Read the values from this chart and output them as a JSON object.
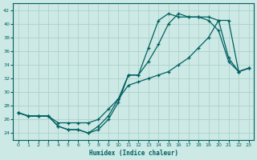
{
  "xlabel": "Humidex (Indice chaleur)",
  "xlim": [
    -0.5,
    23.5
  ],
  "ylim": [
    23,
    43
  ],
  "yticks": [
    24,
    26,
    28,
    30,
    32,
    34,
    36,
    38,
    40,
    42
  ],
  "xticks": [
    0,
    1,
    2,
    3,
    4,
    5,
    6,
    7,
    8,
    9,
    10,
    11,
    12,
    13,
    14,
    15,
    16,
    17,
    18,
    19,
    20,
    21,
    22,
    23
  ],
  "bg_color": "#cce9e5",
  "line_color": "#006060",
  "grid_color": "#a8ccc8",
  "line1_x": [
    0,
    1,
    2,
    3,
    4,
    5,
    6,
    7,
    8,
    9,
    10,
    11,
    12,
    13,
    14,
    15,
    16,
    17,
    18,
    19,
    20,
    21,
    22,
    23
  ],
  "line1_y": [
    27,
    26.5,
    26.5,
    26.5,
    25,
    24.5,
    24.5,
    24,
    24.5,
    26,
    28.5,
    32.5,
    32.5,
    36.5,
    40.5,
    41.5,
    41,
    41,
    41,
    40.5,
    39,
    34.5,
    33,
    33.5
  ],
  "line2_x": [
    0,
    1,
    2,
    3,
    4,
    5,
    6,
    7,
    8,
    9,
    10,
    11,
    12,
    13,
    14,
    15,
    16,
    17,
    18,
    19,
    20,
    21,
    22,
    23
  ],
  "line2_y": [
    27,
    26.5,
    26.5,
    26.5,
    25,
    24.5,
    24.5,
    24,
    25,
    26.5,
    29,
    32.5,
    32.5,
    34.5,
    37,
    40,
    41.5,
    41,
    41,
    41,
    40.5,
    35,
    33,
    33.5
  ],
  "line3_x": [
    0,
    1,
    2,
    3,
    4,
    5,
    6,
    7,
    8,
    9,
    10,
    11,
    12,
    13,
    14,
    15,
    16,
    17,
    18,
    19,
    20,
    21,
    22,
    23
  ],
  "line3_y": [
    27,
    26.5,
    26.5,
    26.5,
    25.5,
    25.5,
    25.5,
    25.5,
    26,
    27.5,
    29,
    31,
    31.5,
    32,
    32.5,
    33,
    34,
    35,
    36.5,
    38,
    40.5,
    40.5,
    33,
    33.5
  ]
}
